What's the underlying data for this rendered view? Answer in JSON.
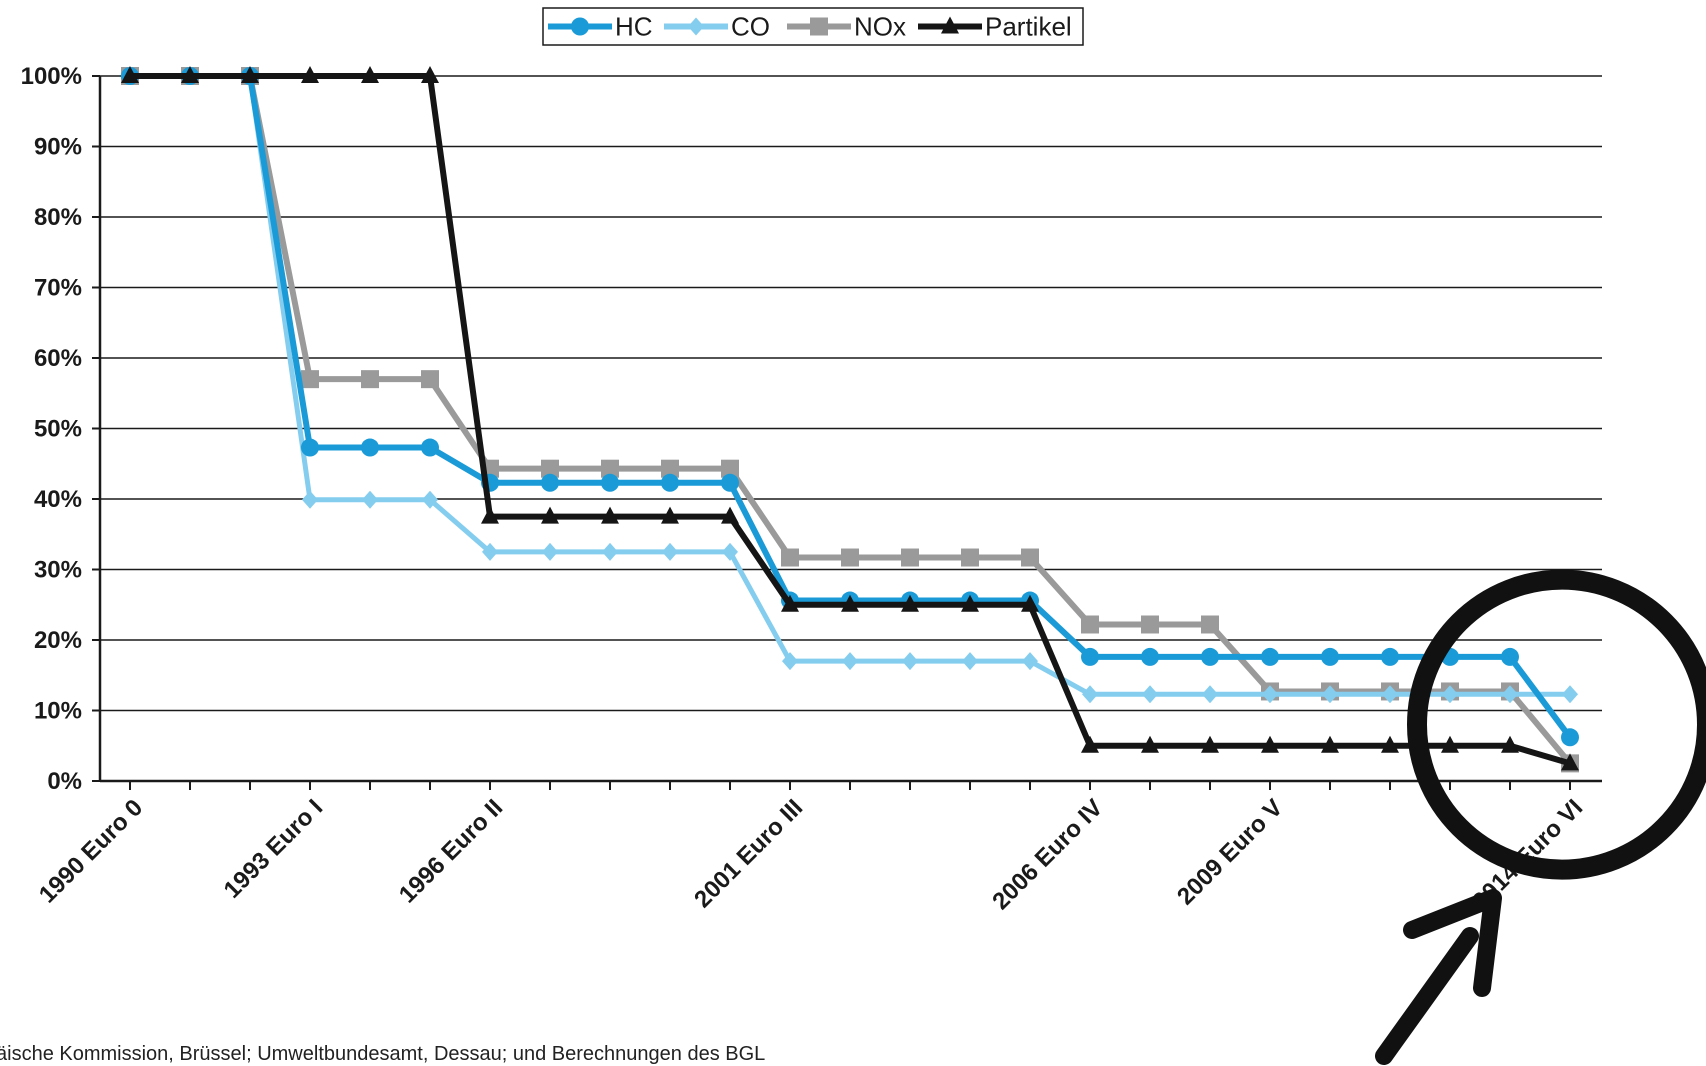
{
  "chart_data": {
    "type": "line",
    "title": "",
    "xlabel": "",
    "ylabel": "",
    "x_tick_labels": [
      "1990 Euro 0",
      "1993 Euro I",
      "1996 Euro II",
      "2001 Euro III",
      "2006 Euro IV",
      "2009 Euro V",
      "2014 Euro VI"
    ],
    "x_tick_positions": [
      0,
      3,
      6,
      11,
      16,
      19,
      24
    ],
    "y_tick_labels": [
      "0%",
      "10%",
      "20%",
      "30%",
      "40%",
      "50%",
      "60%",
      "70%",
      "80%",
      "90%",
      "100%"
    ],
    "ylim": [
      0,
      100
    ],
    "grid": true,
    "legend_position": "top-center",
    "series": [
      {
        "name": "HC",
        "color": "#1a9bd7",
        "marker": "circle",
        "values": [
          100,
          100,
          100,
          47.3,
          47.3,
          47.3,
          42.3,
          42.3,
          42.3,
          42.3,
          42.3,
          25.6,
          25.6,
          25.6,
          25.6,
          25.6,
          17.6,
          17.6,
          17.6,
          17.6,
          17.6,
          17.6,
          17.6,
          17.6,
          6.2
        ]
      },
      {
        "name": "CO",
        "color": "#84cdef",
        "marker": "diamond",
        "values": [
          100,
          100,
          100,
          39.9,
          39.9,
          39.9,
          32.5,
          32.5,
          32.5,
          32.5,
          32.5,
          17.0,
          17.0,
          17.0,
          17.0,
          17.0,
          12.3,
          12.3,
          12.3,
          12.3,
          12.3,
          12.3,
          12.3,
          12.3,
          12.3
        ]
      },
      {
        "name": "NOx",
        "color": "#9a9a9a",
        "marker": "square",
        "values": [
          100,
          100,
          100,
          57.0,
          57.0,
          57.0,
          44.3,
          44.3,
          44.3,
          44.3,
          44.3,
          31.7,
          31.7,
          31.7,
          31.7,
          31.7,
          22.2,
          22.2,
          22.2,
          12.7,
          12.7,
          12.7,
          12.7,
          12.7,
          2.5
        ]
      },
      {
        "name": "Partikel",
        "color": "#151515",
        "marker": "triangle",
        "values": [
          100,
          100,
          100,
          100,
          100,
          100,
          37.5,
          37.5,
          37.5,
          37.5,
          37.5,
          25.0,
          25.0,
          25.0,
          25.0,
          25.0,
          5.0,
          5.0,
          5.0,
          5.0,
          5.0,
          5.0,
          5.0,
          5.0,
          2.5
        ]
      }
    ],
    "annotation": {
      "type": "circle-and-arrow",
      "target_index": 24
    }
  },
  "source_text": "äische Kommission, Brüssel; Umweltbundesamt, Dessau; und Berechnungen des BGL"
}
